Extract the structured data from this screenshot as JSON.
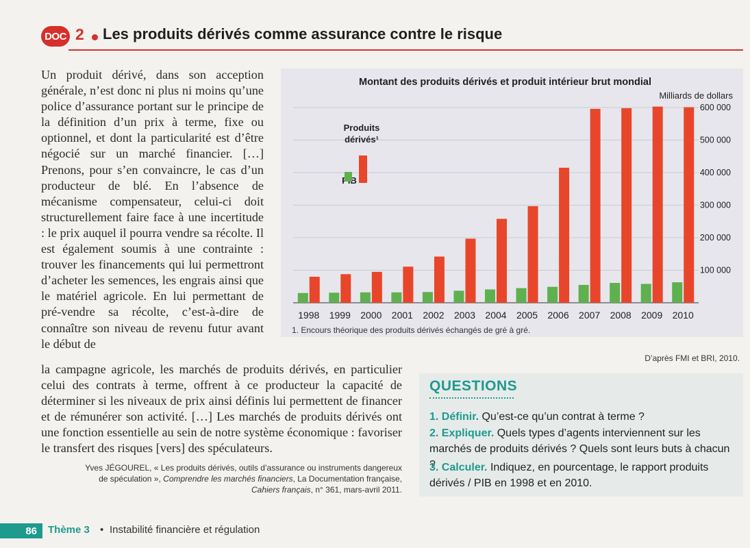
{
  "header": {
    "badge": "DOC",
    "number": "2",
    "title": "Les produits dérivés comme assurance contre le risque"
  },
  "article": {
    "part1": "Un produit dérivé, dans son acception générale, n’est donc ni plus ni moins qu’une police d’assurance portant sur le principe de la définition d’un prix à terme, fixe ou optionnel, et dont la particularité est d’être négocié sur un marché financier. […] Prenons, pour s’en convaincre, le cas d’un producteur de blé. En l’absence de mécanisme compensateur, celui-ci doit structurellement faire face à une incertitude : le prix auquel il pourra vendre sa récolte. Il est également soumis à une contrainte : trouver les financements qui lui permettront d’acheter les semences, les engrais ainsi que le matériel agricole. En lui permettant de pré-vendre sa récolte, c’est-à-dire de connaître son niveau de revenu futur avant le début de",
    "part2": "la campagne agricole, les marchés de produits dérivés, en particulier celui des contrats à terme, offrent à ce producteur la capacité de déterminer si les niveaux de prix ainsi définis lui permettent de financer et de rémunérer son activité. […] Les marchés de produits dérivés ont une fonction essentielle au sein de notre système économique : favoriser le transfert des risques [vers] des spéculateurs.",
    "citation_author": "Yves JÉGOUREL, « Les produits dérivés, outils d’assurance ou instruments dangereux",
    "citation_line2_a": "de spéculation », ",
    "citation_line2_b": "Comprendre les marchés financiers",
    "citation_line2_c": ", La Documentation française,",
    "citation_line3_a": "Cahiers français",
    "citation_line3_b": ", n° 361, mars-avril 2011."
  },
  "chart_data": {
    "type": "bar",
    "title": "Montant des produits dérivés et produit intérieur brut mondial",
    "unit_label": "Milliards de dollars",
    "categories": [
      "1998",
      "1999",
      "2000",
      "2001",
      "2002",
      "2003",
      "2004",
      "2005",
      "2006",
      "2007",
      "2008",
      "2009",
      "2010"
    ],
    "series": [
      {
        "name": "PIB",
        "color": "#5fb04f",
        "values": [
          30000,
          31000,
          32000,
          32000,
          33000,
          37000,
          41000,
          45000,
          49000,
          55000,
          61000,
          58000,
          63000
        ]
      },
      {
        "name": "Produits dérivés¹",
        "color": "#e8462b",
        "values": [
          80000,
          88000,
          95000,
          111000,
          142000,
          197000,
          258000,
          297000,
          415000,
          596000,
          598000,
          603000,
          601000
        ]
      }
    ],
    "ylim": [
      0,
      600000
    ],
    "yticks": [
      "100 000",
      "200 000",
      "300 000",
      "400 000",
      "500 000",
      "600 000"
    ],
    "legend_position": "left",
    "footnote": "1. Encours théorique des produits dérivés échangés de gré à gré.",
    "source": "D’après FMI et BRI, 2010."
  },
  "questions": {
    "heading": "QUESTIONS",
    "q1_num": "1.",
    "q1_verb": "Définir.",
    "q1_text": "Qu’est-ce qu’un contrat à terme ?",
    "q2_num": "2.",
    "q2_verb": "Expliquer.",
    "q2_text": "Quels types d’agents interviennent sur les marchés de produits dérivés ? Quels sont leurs buts à chacun ?",
    "q3_num": "3.",
    "q3_verb": "Calculer.",
    "q3_text": "Indiquez, en pourcentage, le rapport produits dérivés / PIB en 1998 et en 2010."
  },
  "footer": {
    "page_number": "86",
    "theme": "Thème 3",
    "separator": "•",
    "text": "Instabilité financière et régulation"
  },
  "colors": {
    "accent_red": "#d6302b",
    "accent_teal": "#1e9a8e",
    "bar_green": "#5fb04f",
    "bar_orange": "#e8462b"
  }
}
